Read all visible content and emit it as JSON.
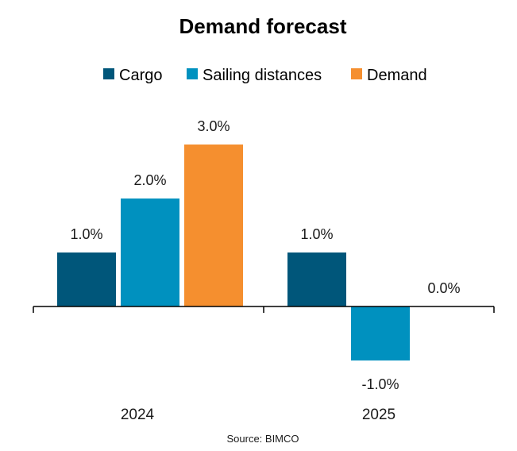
{
  "chart_data": {
    "type": "bar",
    "title": "Demand forecast",
    "categories": [
      "2024",
      "2025"
    ],
    "series": [
      {
        "name": "Cargo",
        "color": "#00567a",
        "values": [
          1.0,
          1.0
        ],
        "labels": [
          "1.0%",
          "1.0%"
        ]
      },
      {
        "name": "Sailing distances",
        "color": "#0091bf",
        "values": [
          2.0,
          -1.0
        ],
        "labels": [
          "2.0%",
          "-1.0%"
        ]
      },
      {
        "name": "Demand",
        "color": "#f58f2f",
        "values": [
          3.0,
          0.0
        ],
        "labels": [
          "3.0%",
          "0.0%"
        ]
      }
    ],
    "xlabel": "",
    "ylabel": "",
    "ylim": [
      -1.5,
      3.5
    ],
    "grid": false,
    "legend_position": "top",
    "source": "Source: BIMCO"
  }
}
